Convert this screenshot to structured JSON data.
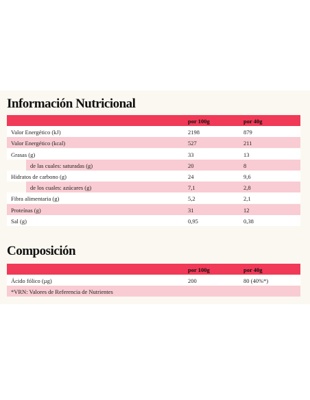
{
  "nutrition": {
    "title": "Información Nutricional",
    "columns": [
      "por 100g",
      "por 40g"
    ],
    "rows": [
      {
        "label": "Valor Energético (kJ)",
        "values": [
          "2198",
          "879"
        ]
      },
      {
        "label": "Valor Energético (kcal)",
        "values": [
          "527",
          "211"
        ]
      },
      {
        "label": "Grasas (g)",
        "values": [
          "33",
          "13"
        ]
      },
      {
        "label": "de las cuales: saturadas (g)",
        "values": [
          "20",
          "8"
        ]
      },
      {
        "label": "Hidratos de carbono (g)",
        "values": [
          "24",
          "9,6"
        ]
      },
      {
        "label": "de los cuales: azúcares (g)",
        "values": [
          "7,1",
          "2,8"
        ]
      },
      {
        "label": "Fibra alimentaria (g)",
        "values": [
          "5,2",
          "2,1"
        ]
      },
      {
        "label": "Proteínas (g)",
        "values": [
          "31",
          "12"
        ]
      },
      {
        "label": "Sal (g)",
        "values": [
          "0,95",
          "0,38"
        ]
      }
    ]
  },
  "composition": {
    "title": "Composición",
    "columns": [
      "por 100g",
      "por 40g"
    ],
    "rows": [
      {
        "label": "Ácido fólico (µg)",
        "values": [
          "200",
          "80 (40%*)"
        ]
      }
    ],
    "note": "*VRN: Valores de Referencia de Nutrientes"
  }
}
